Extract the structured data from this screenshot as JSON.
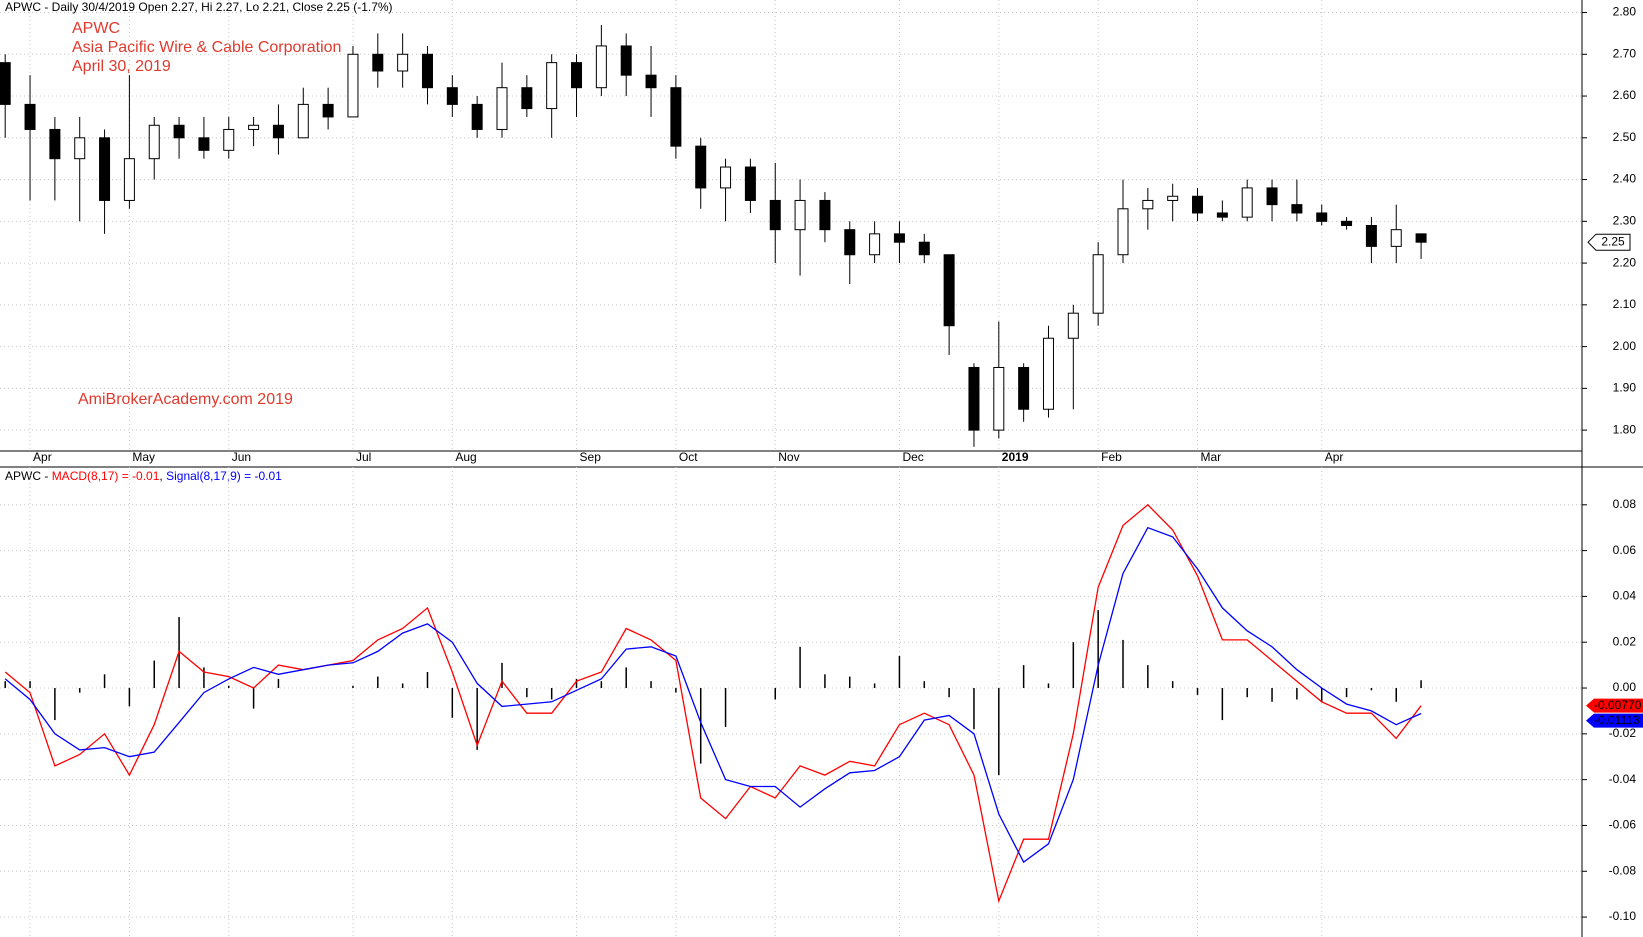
{
  "chart_data": [
    {
      "type": "candlestick",
      "title": "APWC - Daily 30/4/2019 Open 2.27, Hi 2.27, Lo 2.21, Close 2.25 (-1.7%)",
      "annotations": [
        "APWC",
        "Asia Pacific Wire & Cable Corporation",
        "April 30, 2019"
      ],
      "watermark": "AmiBrokerAcademy.com  2019",
      "categories": [
        null,
        "Apr",
        null,
        null,
        null,
        "May",
        null,
        null,
        null,
        "Jun",
        null,
        null,
        null,
        null,
        "Jul",
        null,
        null,
        null,
        "Aug",
        null,
        null,
        null,
        null,
        "Sep",
        null,
        null,
        null,
        "Oct",
        null,
        null,
        null,
        "Nov",
        null,
        null,
        null,
        null,
        "Dec",
        null,
        null,
        null,
        "2019",
        null,
        null,
        null,
        "Feb",
        null,
        null,
        null,
        "Mar",
        null,
        null,
        null,
        null,
        "Apr",
        null,
        null,
        null,
        null
      ],
      "open": [
        2.68,
        2.58,
        2.52,
        2.45,
        2.5,
        2.35,
        2.45,
        2.53,
        2.5,
        2.47,
        2.52,
        2.53,
        2.5,
        2.58,
        2.55,
        2.7,
        2.66,
        2.7,
        2.62,
        2.58,
        2.52,
        2.62,
        2.57,
        2.68,
        2.62,
        2.72,
        2.65,
        2.62,
        2.48,
        2.38,
        2.43,
        2.35,
        2.28,
        2.35,
        2.28,
        2.22,
        2.27,
        2.25,
        2.22,
        1.95,
        1.8,
        1.95,
        1.85,
        2.02,
        2.08,
        2.22,
        2.33,
        2.35,
        2.36,
        2.32,
        2.31,
        2.38,
        2.34,
        2.32,
        2.3,
        2.29,
        2.24,
        2.27
      ],
      "high": [
        2.7,
        2.65,
        2.55,
        2.55,
        2.52,
        2.65,
        2.55,
        2.55,
        2.55,
        2.55,
        2.55,
        2.58,
        2.62,
        2.62,
        2.72,
        2.75,
        2.75,
        2.72,
        2.65,
        2.6,
        2.68,
        2.65,
        2.7,
        2.7,
        2.77,
        2.75,
        2.72,
        2.65,
        2.5,
        2.45,
        2.45,
        2.44,
        2.4,
        2.37,
        2.3,
        2.3,
        2.3,
        2.27,
        2.22,
        1.96,
        2.06,
        1.96,
        2.05,
        2.1,
        2.25,
        2.4,
        2.38,
        2.39,
        2.38,
        2.35,
        2.4,
        2.4,
        2.4,
        2.34,
        2.31,
        2.31,
        2.34,
        2.27
      ],
      "low": [
        2.5,
        2.35,
        2.35,
        2.3,
        2.27,
        2.33,
        2.4,
        2.45,
        2.45,
        2.45,
        2.48,
        2.46,
        2.5,
        2.52,
        2.55,
        2.62,
        2.62,
        2.58,
        2.55,
        2.5,
        2.5,
        2.55,
        2.5,
        2.55,
        2.6,
        2.6,
        2.55,
        2.45,
        2.33,
        2.3,
        2.32,
        2.2,
        2.17,
        2.25,
        2.15,
        2.2,
        2.2,
        2.2,
        1.98,
        1.76,
        1.78,
        1.82,
        1.83,
        1.85,
        2.05,
        2.2,
        2.28,
        2.3,
        2.3,
        2.3,
        2.3,
        2.3,
        2.3,
        2.29,
        2.28,
        2.2,
        2.2,
        2.21
      ],
      "close": [
        2.58,
        2.52,
        2.45,
        2.5,
        2.35,
        2.45,
        2.53,
        2.5,
        2.47,
        2.52,
        2.53,
        2.5,
        2.58,
        2.55,
        2.7,
        2.66,
        2.7,
        2.62,
        2.58,
        2.52,
        2.62,
        2.57,
        2.68,
        2.62,
        2.72,
        2.65,
        2.62,
        2.48,
        2.38,
        2.43,
        2.35,
        2.28,
        2.35,
        2.28,
        2.22,
        2.27,
        2.25,
        2.22,
        2.05,
        1.8,
        1.95,
        1.85,
        2.02,
        2.08,
        2.22,
        2.33,
        2.35,
        2.36,
        2.32,
        2.31,
        2.38,
        2.34,
        2.32,
        2.3,
        2.29,
        2.24,
        2.28,
        2.25
      ],
      "ylim": [
        1.75,
        2.83
      ],
      "yticks": [
        {
          "value": 1.8,
          "label": "1.80"
        },
        {
          "value": 1.9,
          "label": "1.90"
        },
        {
          "value": 2,
          "label": "2.00"
        },
        {
          "value": 2.1,
          "label": "2.10"
        },
        {
          "value": 2.2,
          "label": "2.20"
        },
        {
          "value": 2.3,
          "label": "2.30"
        },
        {
          "value": 2.4,
          "label": "2.40"
        },
        {
          "value": 2.5,
          "label": "2.50"
        },
        {
          "value": 2.6,
          "label": "2.60"
        },
        {
          "value": 2.7,
          "label": "2.70"
        },
        {
          "value": 2.8,
          "label": "2.80"
        }
      ],
      "grid": true
    },
    {
      "type": "macd",
      "title": "APWC -",
      "legend_separator": ",",
      "series": [
        {
          "name": "MACD(8,17) = -0.01",
          "color": "#ff0000",
          "tag": "-0.00770",
          "values": [
            0.007,
            -0.002,
            -0.034,
            -0.029,
            -0.02,
            -0.038,
            -0.016,
            0.016,
            0.007,
            0.005,
            0.0,
            0.01,
            0.008,
            0.01,
            0.012,
            0.021,
            0.026,
            0.035,
            0.007,
            -0.025,
            0.003,
            -0.011,
            -0.011,
            0.003,
            0.007,
            0.026,
            0.021,
            0.012,
            -0.048,
            -0.057,
            -0.043,
            -0.048,
            -0.034,
            -0.038,
            -0.032,
            -0.034,
            -0.016,
            -0.011,
            -0.016,
            -0.038,
            -0.093,
            -0.066,
            -0.066,
            -0.02,
            0.044,
            0.071,
            0.08,
            0.069,
            0.049,
            0.021,
            0.021,
            0.012,
            0.003,
            -0.006,
            -0.011,
            -0.011,
            -0.022,
            -0.0077
          ]
        },
        {
          "name": "Signal(8,17,9) = -0.01",
          "color": "#0000ff",
          "tag": "-0.01113",
          "values": [
            0.004,
            -0.005,
            -0.02,
            -0.027,
            -0.026,
            -0.03,
            -0.028,
            -0.015,
            -0.002,
            0.004,
            0.009,
            0.006,
            0.008,
            0.01,
            0.011,
            0.016,
            0.024,
            0.028,
            0.02,
            0.002,
            -0.008,
            -0.007,
            -0.006,
            -0.001,
            0.004,
            0.017,
            0.018,
            0.014,
            -0.015,
            -0.04,
            -0.043,
            -0.043,
            -0.052,
            -0.044,
            -0.037,
            -0.036,
            -0.03,
            -0.014,
            -0.012,
            -0.02,
            -0.055,
            -0.076,
            -0.068,
            -0.04,
            0.01,
            0.05,
            0.07,
            0.066,
            0.052,
            0.035,
            0.025,
            0.018,
            0.008,
            0.0,
            -0.007,
            -0.01,
            -0.016,
            -0.01113
          ]
        },
        {
          "color": "#000000",
          "values": [
            0.003,
            0.003,
            -0.014,
            -0.002,
            0.006,
            -0.008,
            0.012,
            0.031,
            0.009,
            0.001,
            -0.009,
            0.004,
            0,
            0,
            0.001,
            0.005,
            0.002,
            0.007,
            -0.013,
            -0.027,
            0.011,
            -0.004,
            -0.005,
            0.004,
            0.003,
            0.009,
            0.003,
            -0.002,
            -0.033,
            -0.017,
            0,
            -0.005,
            0.018,
            0.006,
            0.005,
            0.002,
            0.014,
            0.003,
            -0.004,
            -0.018,
            -0.038,
            0.01,
            0.002,
            0.02,
            0.034,
            0.021,
            0.01,
            0.003,
            -0.003,
            -0.014,
            -0.004,
            -0.006,
            -0.005,
            -0.006,
            -0.004,
            -0.001,
            -0.006,
            0.0034
          ]
        }
      ],
      "ylim": [
        -0.1087,
        0.0965
      ],
      "yticks": [
        {
          "value": -0.1,
          "label": "-0.10"
        },
        -0.08,
        -0.06,
        -0.04,
        -0.02,
        {
          "value": 0,
          "label": "0.00"
        },
        0.02,
        0.04,
        0.06,
        0.08
      ],
      "grid": true
    }
  ]
}
